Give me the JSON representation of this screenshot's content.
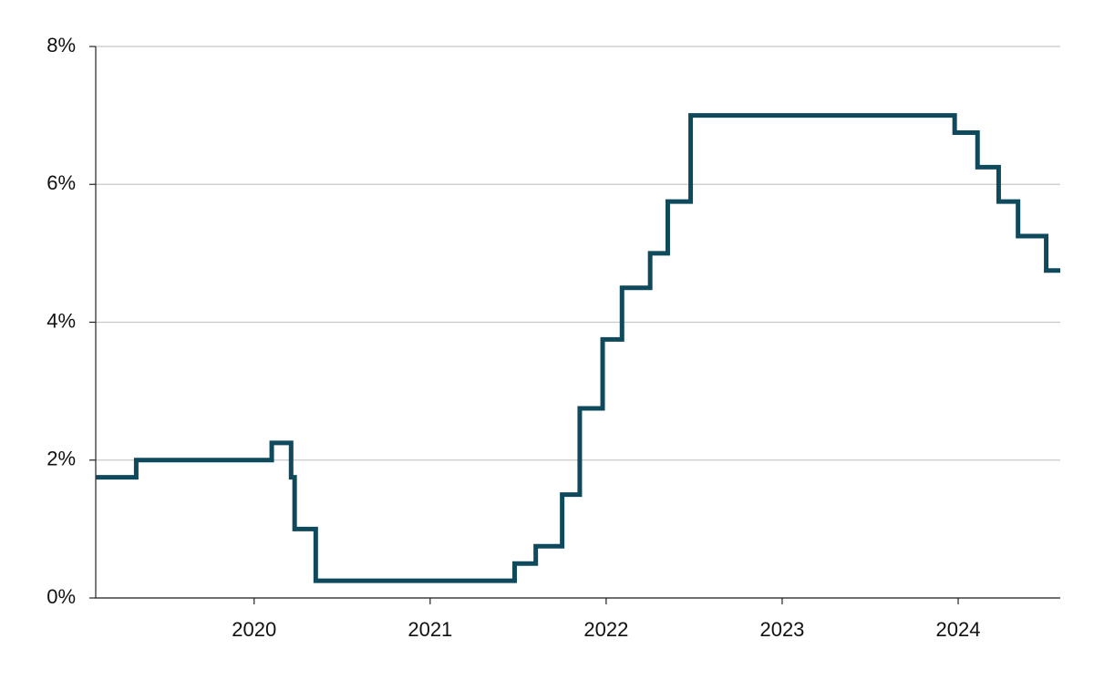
{
  "chart_data": {
    "type": "step",
    "x": [
      2019.1,
      2019.33,
      2020.1,
      2020.21,
      2020.23,
      2020.35,
      2021.48,
      2021.6,
      2021.75,
      2021.85,
      2021.98,
      2022.09,
      2022.25,
      2022.35,
      2022.48,
      2023.98,
      2024.11,
      2024.23,
      2024.34,
      2024.5,
      2024.58
    ],
    "series": [
      {
        "color": "#0f4a5c",
        "values": [
          1.75,
          2.0,
          2.25,
          1.75,
          1.0,
          0.25,
          0.5,
          0.75,
          1.5,
          2.75,
          3.75,
          4.5,
          5.0,
          5.75,
          7.0,
          6.75,
          6.25,
          5.75,
          5.25,
          4.75,
          4.75
        ]
      }
    ],
    "xlim": [
      2019.1,
      2024.58
    ],
    "xticks": [
      2020,
      2021,
      2022,
      2023,
      2024
    ],
    "ylim": [
      0,
      8
    ],
    "yticks": [
      {
        "value": 0,
        "label": "0%"
      },
      {
        "value": 2,
        "label": "2%"
      },
      {
        "value": 4,
        "label": "4%"
      },
      {
        "value": 6,
        "label": "6%"
      },
      {
        "value": 8,
        "label": "8%"
      }
    ],
    "grid": true
  }
}
